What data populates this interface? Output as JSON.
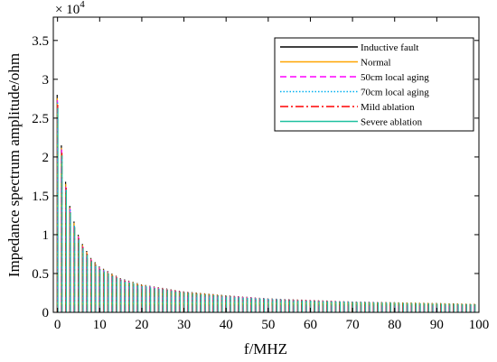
{
  "chart_data": {
    "type": "line",
    "title": "",
    "xlabel": "f/MHZ",
    "ylabel": "Impedance  spectrum amplitude/ohm",
    "y_multiplier_label": "× 10",
    "y_multiplier_exponent": "4",
    "xlim": [
      -1,
      100
    ],
    "ylim": [
      0,
      3.8
    ],
    "xticks": [
      "0",
      "10",
      "20",
      "30",
      "40",
      "50",
      "60",
      "70",
      "80",
      "90",
      "100"
    ],
    "yticks": [
      "0",
      "0.5",
      "1",
      "1.5",
      "2",
      "2.5",
      "3",
      "3.5"
    ],
    "legend_position": "top-right",
    "grid": false,
    "resonance_spacing_mhz": 1,
    "envelope": {
      "f": [
        0,
        1,
        2,
        3,
        4,
        5,
        6,
        8,
        10,
        15,
        20,
        30,
        40,
        50,
        60,
        70,
        80,
        90,
        99
      ],
      "amplitude": [
        2.8,
        2.15,
        1.68,
        1.37,
        1.17,
        1.0,
        0.88,
        0.7,
        0.59,
        0.44,
        0.36,
        0.27,
        0.22,
        0.18,
        0.16,
        0.14,
        0.13,
        0.12,
        0.11
      ]
    },
    "series": [
      {
        "name": "Inductive fault",
        "color": "#000000",
        "dash": "",
        "scale": 1.0
      },
      {
        "name": "Normal",
        "color": "#ffa500",
        "dash": "",
        "scale": 0.985
      },
      {
        "name": "50cm local aging",
        "color": "#ff00ff",
        "dash": "7,4",
        "scale": 0.975
      },
      {
        "name": "70cm local aging",
        "color": "#00b0f0",
        "dash": "1.5,2",
        "scale": 0.965
      },
      {
        "name": " Mild ablation",
        "color": "#ff0000",
        "dash": "9,3,2,3",
        "scale": 0.955
      },
      {
        "name": "Severe ablation",
        "color": "#20c0a0",
        "dash": "",
        "scale": 0.94
      }
    ]
  }
}
